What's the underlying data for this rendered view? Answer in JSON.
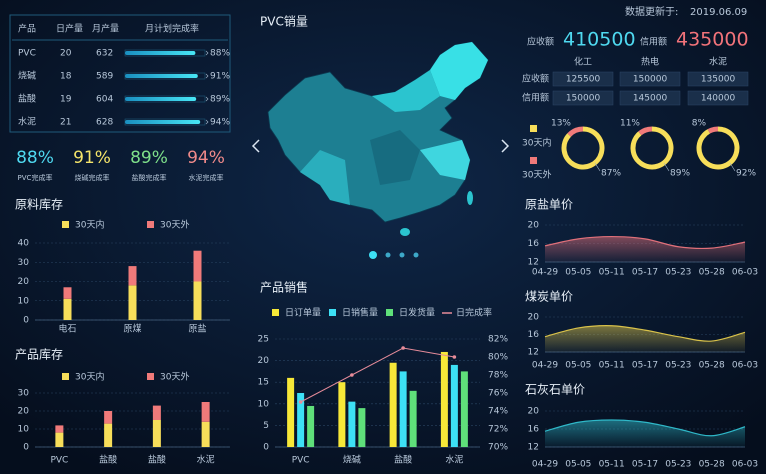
{
  "production_table": {
    "columns": [
      "产品",
      "日产量",
      "月产量",
      "月计划完成率"
    ],
    "rows": [
      [
        "PVC",
        "20",
        "632"
      ],
      [
        "烧碱",
        "18",
        "589"
      ],
      [
        "盐酸",
        "19",
        "604"
      ],
      [
        "水泥",
        "21",
        "628"
      ]
    ],
    "rates": [
      88,
      91,
      89,
      94
    ],
    "rate_labels": [
      "88%",
      "91%",
      "89%",
      "94%"
    ]
  },
  "completion": {
    "values": [
      88,
      91,
      89,
      94
    ],
    "value_labels": [
      "88%",
      "91%",
      "89%",
      "94%"
    ],
    "labels": [
      "PVC完成率",
      "烧碱完成率",
      "盐酸完成率",
      "水泥完成率"
    ],
    "colors": [
      "#4fd9f0",
      "#f4e46a",
      "#7ee08a",
      "#f08a8a"
    ]
  },
  "map": {
    "title": "PVC销量"
  },
  "receivables": {
    "updated_label": "数据更新于:",
    "updated": "2019.06.09",
    "items": [
      {
        "label": "应收额",
        "value": "410500",
        "color": "#4fd9f0"
      },
      {
        "label": "信用额",
        "value": "435000",
        "color": "#f2737a"
      }
    ],
    "columns": [
      "化工",
      "热电",
      "水泥"
    ],
    "rows": [
      {
        "label": "应收额",
        "values": [
          "125500",
          "150000",
          "135000"
        ]
      },
      {
        "label": "信用额",
        "values": [
          "150000",
          "145000",
          "140000"
        ]
      }
    ]
  },
  "chart_data": [
    {
      "type": "stacked_bar",
      "title": "原料库存",
      "categories": [
        "电石",
        "原煤",
        "原盐"
      ],
      "series": [
        {
          "name": "30天内",
          "color": "#f7de5a",
          "values": [
            11,
            18,
            20
          ]
        },
        {
          "name": "30天外",
          "color": "#f07a7a",
          "values": [
            6,
            10,
            16
          ]
        }
      ],
      "ylim": [
        0,
        40
      ],
      "yticks": [
        0,
        10,
        20,
        30,
        40
      ],
      "grid": true
    },
    {
      "type": "stacked_bar",
      "title": "产品库存",
      "categories": [
        "PVC",
        "盐酸",
        "盐酸",
        "水泥"
      ],
      "series": [
        {
          "name": "30天内",
          "color": "#f7de5a",
          "values": [
            8,
            13,
            15,
            14
          ]
        },
        {
          "name": "30天外",
          "color": "#f07a7a",
          "values": [
            4,
            7,
            8,
            11
          ]
        }
      ],
      "ylim": [
        0,
        30
      ],
      "yticks": [
        0,
        10,
        20,
        30
      ],
      "grid": true
    },
    {
      "type": "bar_line",
      "title": "产品销售",
      "categories": [
        "PVC",
        "烧碱",
        "盐酸",
        "水泥"
      ],
      "series": [
        {
          "name": "日订单量",
          "color": "#f7e838",
          "values": [
            16,
            15,
            19.5,
            22
          ]
        },
        {
          "name": "日销售量",
          "color": "#3de0f5",
          "values": [
            12.5,
            10.5,
            17.5,
            19
          ]
        },
        {
          "name": "日发货量",
          "color": "#5fe07a",
          "values": [
            9.5,
            9,
            13,
            17.5
          ]
        },
        {
          "name": "日完成率",
          "color": "#e78c9a",
          "values": [
            75,
            78,
            81,
            80
          ],
          "axis": "y2"
        }
      ],
      "ylim": [
        0,
        25
      ],
      "yticks": [
        0,
        5,
        10,
        15,
        20,
        25
      ],
      "y2lim": [
        70,
        82
      ],
      "y2ticks": [
        {
          "value": 70,
          "label": "70%"
        },
        {
          "value": 72,
          "label": "72%"
        },
        {
          "value": 74,
          "label": "74%"
        },
        {
          "value": 76,
          "label": "76%"
        },
        {
          "value": 78,
          "label": "78%"
        },
        {
          "value": 80,
          "label": "80%"
        },
        {
          "value": 82,
          "label": "82%"
        }
      ],
      "grid": true
    },
    {
      "type": "ring",
      "series": [
        {
          "name": "30天内",
          "color": "#f7de5a",
          "values": [
            87,
            89,
            92
          ],
          "value_labels": [
            "87%",
            "89%",
            "92%"
          ]
        },
        {
          "name": "30天外",
          "color": "#f07a7a",
          "values": [
            13,
            11,
            8
          ],
          "value_labels": [
            "13%",
            "11%",
            "8%"
          ]
        }
      ]
    },
    {
      "type": "area",
      "title": "原盐单价",
      "categories": [
        "04-29",
        "05-05",
        "05-11",
        "05-17",
        "05-23",
        "05-28",
        "06-03"
      ],
      "series": [
        {
          "color": "#e0707a",
          "values": [
            15.5,
            17,
            17.5,
            17,
            15.3,
            15,
            16.3
          ]
        }
      ],
      "ylim": [
        12,
        20
      ],
      "yticks": [
        12,
        16,
        20
      ],
      "grid": true
    },
    {
      "type": "area",
      "title": "煤炭单价",
      "categories": [
        "04-29",
        "05-05",
        "05-11",
        "05-17",
        "05-23",
        "05-28",
        "06-03"
      ],
      "series": [
        {
          "color": "#d9c24a",
          "values": [
            15.5,
            17.5,
            18,
            17,
            15.5,
            14.5,
            16.5
          ]
        }
      ],
      "ylim": [
        12,
        20
      ],
      "yticks": [
        12,
        16,
        20
      ],
      "grid": true
    },
    {
      "type": "area",
      "title": "石灰石单价",
      "categories": [
        "04-29",
        "05-05",
        "05-11",
        "05-17",
        "05-23",
        "05-28",
        "06-03"
      ],
      "series": [
        {
          "color": "#2fb8c8",
          "values": [
            15.5,
            17.5,
            18,
            17.5,
            16,
            14.5,
            16.5
          ]
        }
      ],
      "ylim": [
        12,
        20
      ],
      "yticks": [
        12,
        16,
        20
      ],
      "grid": true
    }
  ]
}
